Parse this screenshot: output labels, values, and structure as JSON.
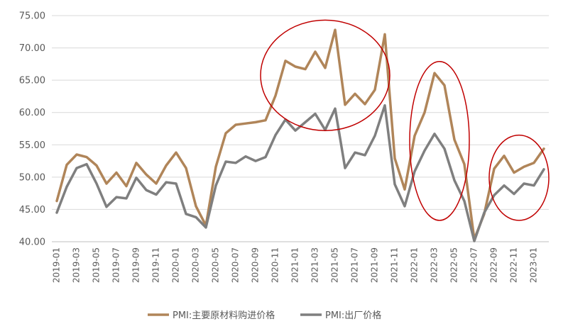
{
  "chart_data": {
    "type": "line",
    "title": "",
    "xlabel": "",
    "ylabel": "",
    "ylim": [
      40,
      75
    ],
    "yticks": [
      "40.00",
      "45.00",
      "50.00",
      "55.00",
      "60.00",
      "65.00",
      "70.00",
      "75.00"
    ],
    "x_labels_shown": [
      "2019-01",
      "2019-03",
      "2019-05",
      "2019-07",
      "2019-09",
      "2019-11",
      "2020-01",
      "2020-03",
      "2020-05",
      "2020-07",
      "2020-09",
      "2020-11",
      "2021-01",
      "2021-03",
      "2021-05",
      "2021-07",
      "2021-09",
      "2021-11",
      "2022-01",
      "2022-03",
      "2022-05",
      "2022-07",
      "2022-09",
      "2022-11",
      "2023-01"
    ],
    "x": [
      "2019-01",
      "2019-02",
      "2019-03",
      "2019-04",
      "2019-05",
      "2019-06",
      "2019-07",
      "2019-08",
      "2019-09",
      "2019-10",
      "2019-11",
      "2019-12",
      "2020-01",
      "2020-02",
      "2020-03",
      "2020-04",
      "2020-05",
      "2020-06",
      "2020-07",
      "2020-08",
      "2020-09",
      "2020-10",
      "2020-11",
      "2020-12",
      "2021-01",
      "2021-02",
      "2021-03",
      "2021-04",
      "2021-05",
      "2021-06",
      "2021-07",
      "2021-08",
      "2021-09",
      "2021-10",
      "2021-11",
      "2021-12",
      "2022-01",
      "2022-02",
      "2022-03",
      "2022-04",
      "2022-05",
      "2022-06",
      "2022-07",
      "2022-08",
      "2022-09",
      "2022-10",
      "2022-11",
      "2022-12",
      "2023-01",
      "2023-02"
    ],
    "series": [
      {
        "name": "PMI:主要原材料购进价格",
        "color": "#b08559",
        "values": [
          46.3,
          51.9,
          53.5,
          53.1,
          51.8,
          49.0,
          50.7,
          48.6,
          52.2,
          50.4,
          49.0,
          51.8,
          53.8,
          51.4,
          45.5,
          42.5,
          51.6,
          56.8,
          58.1,
          58.3,
          58.5,
          58.8,
          62.6,
          68.0,
          67.1,
          66.7,
          69.4,
          66.9,
          72.8,
          61.2,
          62.9,
          61.3,
          63.5,
          72.1,
          52.9,
          48.1,
          56.4,
          60.0,
          66.1,
          64.2,
          55.8,
          52.0,
          40.4,
          44.3,
          51.3,
          53.3,
          50.7,
          51.6,
          52.2,
          54.4
        ]
      },
      {
        "name": "PMI:出厂价格",
        "color": "#7f7f7f",
        "values": [
          44.5,
          48.5,
          51.4,
          52.0,
          49.0,
          45.4,
          46.9,
          46.7,
          49.9,
          48.0,
          47.3,
          49.2,
          49.0,
          44.3,
          43.8,
          42.2,
          48.7,
          52.4,
          52.2,
          53.2,
          52.5,
          53.1,
          56.5,
          58.9,
          57.2,
          58.5,
          59.8,
          57.3,
          60.6,
          51.4,
          53.8,
          53.4,
          56.4,
          61.1,
          48.9,
          45.5,
          50.9,
          54.1,
          56.7,
          54.4,
          49.5,
          46.3,
          40.1,
          44.5,
          47.2,
          48.7,
          47.4,
          49.0,
          48.7,
          51.2
        ]
      }
    ],
    "annotations": [
      {
        "type": "ellipse",
        "color": "#c00000",
        "x_range": [
          "2020-10",
          "2021-10"
        ],
        "y_range": [
          57.2,
          74.3
        ]
      },
      {
        "type": "ellipse",
        "color": "#c00000",
        "x_range": [
          "2022-01",
          "2022-06"
        ],
        "y_range": [
          43.3,
          67.9
        ]
      },
      {
        "type": "ellipse",
        "color": "#c00000",
        "x_range": [
          "2022-09",
          "2023-02"
        ],
        "y_range": [
          43.3,
          56.5
        ]
      }
    ],
    "grid": "horizontal",
    "legend": "bottom"
  }
}
